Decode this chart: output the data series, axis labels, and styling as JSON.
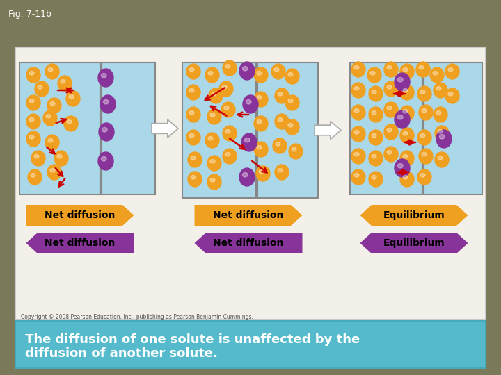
{
  "fig_label": "Fig. 7-11b",
  "bg_color": "#7a7a5a",
  "panel_bg": "#f2f0e8",
  "box_bg": "#aad8e8",
  "membrane_color": "#888888",
  "orange_color": "#f0a020",
  "purple_color": "#883399",
  "arrow_color": "#cc0000",
  "orange_label_bg": "#f0a020",
  "purple_label_bg": "#883399",
  "bottom_box_bg": "#55bbcc",
  "bottom_text_color": "#ffffff",
  "bottom_text_line1": "The diffusion of one solute is unaffected by the",
  "bottom_text_line2": "diffusion of another solute.",
  "title": "Fig. 7-11b",
  "copyright": "Copyright © 2008 Pearson Education, Inc., publishing as Pearson Benjamin Cummings."
}
